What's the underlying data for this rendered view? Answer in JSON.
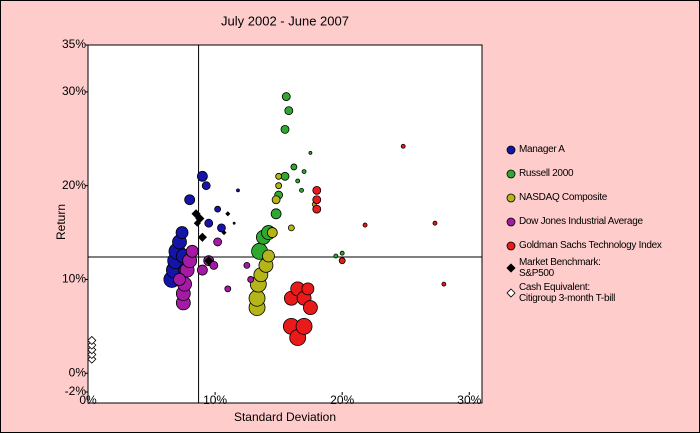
{
  "chart_data": {
    "type": "bubble",
    "title": "July 2002 - June 2007",
    "x_label": "Standard Deviation",
    "y_label": "Return",
    "xlim": [
      0,
      31
    ],
    "ylim": [
      -2,
      35
    ],
    "xticks": [
      {
        "value": 0,
        "label": "0%"
      },
      {
        "value": 10,
        "label": "10%"
      },
      {
        "value": 20,
        "label": "20%"
      },
      {
        "value": 30,
        "label": "30%"
      }
    ],
    "yticks": [
      {
        "value": -2,
        "label": "-2%"
      },
      {
        "value": 0,
        "label": "0%"
      },
      {
        "value": 10,
        "label": "10%"
      },
      {
        "value": 20,
        "label": "20%"
      },
      {
        "value": 30,
        "label": "30%"
      },
      {
        "value": 35,
        "label": "35%"
      }
    ],
    "reference_lines": {
      "x": 8.7,
      "y": 12.4
    },
    "series": [
      {
        "name": "Manager A",
        "color": "#1414a8",
        "shape": "circle",
        "x": [
          6.6,
          6.8,
          6.9,
          7.0,
          7.2,
          7.4,
          7.5,
          7.6,
          8.0,
          9.0,
          9.3,
          9.5,
          10.2,
          10.5,
          11.8,
          11.5
        ],
        "values": [
          10,
          11,
          12,
          13,
          14,
          15,
          12.5,
          11,
          18.5,
          21,
          20,
          16,
          17.5,
          15.5,
          19.5,
          16
        ],
        "sizes": [
          8,
          8,
          8,
          8,
          7,
          6,
          7,
          6,
          5,
          5,
          4,
          4,
          3,
          4,
          1.5,
          1
        ]
      },
      {
        "name": "Russell 2000",
        "color": "#2ea82e",
        "shape": "circle",
        "x": [
          13.5,
          13.8,
          14.2,
          14.8,
          15.0,
          15.5,
          15.5,
          15.8,
          15.6,
          16.2,
          16.5,
          16.8,
          17.0,
          17.5,
          19.5,
          20.0
        ],
        "values": [
          13,
          14.5,
          15,
          17,
          19,
          21,
          26,
          28,
          29.5,
          22,
          20.5,
          19.5,
          21.5,
          23.5,
          12.5,
          12.8
        ],
        "sizes": [
          8,
          7,
          7,
          5,
          4,
          4,
          4,
          4,
          4,
          3,
          2,
          2,
          2,
          1.5,
          2,
          2
        ]
      },
      {
        "name": "NASDAQ Composite",
        "color": "#b5b51a",
        "shape": "circle",
        "x": [
          13.3,
          13.3,
          13.4,
          13.6,
          14.0,
          14.2,
          14.5,
          14.8,
          15.0,
          15.0,
          16.0,
          17.8
        ],
        "values": [
          7,
          8,
          9.5,
          10.5,
          11.5,
          12.5,
          15,
          18.5,
          20,
          21,
          15.5,
          18
        ],
        "sizes": [
          8,
          8,
          8,
          7,
          7,
          6,
          5,
          4,
          3,
          3,
          3,
          2
        ]
      },
      {
        "name": "Dow Jones Industrial Average",
        "color": "#a51aa5",
        "shape": "circle",
        "x": [
          7.5,
          7.5,
          7.6,
          7.8,
          8.0,
          8.2,
          9.0,
          9.5,
          9.9,
          10.2,
          11.0,
          12.5,
          12.8,
          7.2
        ],
        "values": [
          7.5,
          8.5,
          9.5,
          11,
          12,
          13,
          11,
          12,
          11.5,
          14,
          9,
          11.5,
          10,
          10
        ],
        "sizes": [
          7,
          7,
          7,
          7,
          7,
          6,
          5,
          5,
          4,
          4,
          3,
          3,
          3,
          6
        ]
      },
      {
        "name": "Goldman Sachs Technology Index",
        "color": "#e81a1a",
        "shape": "circle",
        "x": [
          16.0,
          16.5,
          17.0,
          16.0,
          16.5,
          17.0,
          17.5,
          17.3,
          18.0,
          18.0,
          18.0,
          20.0,
          21.8,
          24.8,
          27.3,
          28.0
        ],
        "values": [
          5,
          3.8,
          5,
          8,
          9,
          8,
          7,
          9,
          17.5,
          18.5,
          19.5,
          12,
          15.8,
          24.2,
          16,
          9.5
        ],
        "sizes": [
          8,
          8,
          8,
          7,
          7,
          7,
          7,
          6,
          4,
          4,
          4,
          3,
          2,
          2,
          2,
          2
        ]
      },
      {
        "name": "Market Benchmark:\nS&P500",
        "color": "#000000",
        "shape": "diamond",
        "x": [
          8.5,
          8.8,
          9.0,
          9.5,
          8.6,
          10.7,
          11.0
        ],
        "values": [
          17,
          16.5,
          14.5,
          12,
          16,
          15,
          17
        ],
        "sizes": [
          4,
          4,
          4,
          4,
          3,
          2,
          2
        ]
      },
      {
        "name": "Cash Equivalent:\nCitigroup 3-month T-bill",
        "color": "#ffffff",
        "shape": "diamond",
        "x": [
          0.3,
          0.3,
          0.3,
          0.3,
          0.3
        ],
        "values": [
          1.5,
          2,
          2.5,
          3,
          3.5
        ],
        "sizes": [
          4,
          4,
          4,
          4,
          4
        ]
      }
    ]
  }
}
